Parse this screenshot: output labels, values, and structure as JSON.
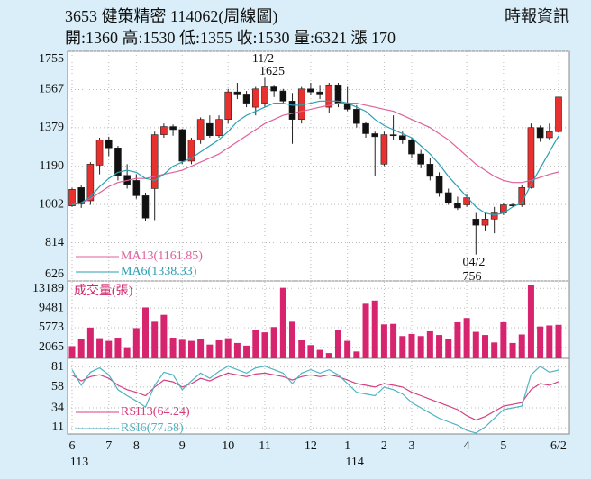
{
  "header": {
    "title": "3653  健策精密 114062(周線圖)",
    "source": "時報資訊",
    "summary": "開:1360 高:1530 低:1355 收:1530 量:6321 漲 170"
  },
  "chart_data": [
    {
      "type": "candlestick",
      "categories": [
        "6",
        null,
        null,
        null,
        "7",
        null,
        null,
        "8",
        null,
        null,
        null,
        null,
        "9",
        null,
        null,
        null,
        null,
        "10",
        null,
        null,
        null,
        "11",
        null,
        null,
        null,
        null,
        "12",
        null,
        null,
        null,
        "1",
        null,
        null,
        null,
        "2",
        null,
        null,
        "3",
        null,
        null,
        null,
        null,
        null,
        "4",
        null,
        null,
        null,
        "5",
        null,
        null,
        null,
        null,
        null,
        "6/2"
      ],
      "year_labels": [
        "113",
        null,
        null,
        null,
        null,
        null,
        null,
        null,
        null,
        null,
        null,
        null,
        null,
        null,
        null,
        null,
        null,
        null,
        null,
        null,
        null,
        null,
        null,
        null,
        null,
        null,
        null,
        null,
        null,
        null,
        "114",
        null,
        null,
        null,
        null,
        null,
        null,
        null,
        null,
        null,
        null,
        null,
        null,
        null,
        null,
        null,
        null,
        null,
        null,
        null,
        null,
        null,
        null,
        null
      ],
      "open": [
        995,
        1085,
        1020,
        1195,
        1320,
        1280,
        1145,
        1120,
        1045,
        1080,
        1345,
        1385,
        1370,
        1215,
        1320,
        1400,
        1340,
        1420,
        1555,
        1545,
        1480,
        1500,
        1580,
        1560,
        1510,
        1420,
        1570,
        1555,
        1480,
        1590,
        1500,
        1470,
        1400,
        1350,
        1200,
        1345,
        1340,
        1320,
        1250,
        1200,
        1140,
        1060,
        1010,
        1000,
        930,
        900,
        930,
        960,
        1000,
        1000,
        1085,
        1380,
        1330,
        1360
      ],
      "high": [
        1085,
        1095,
        1210,
        1330,
        1335,
        1290,
        1200,
        1150,
        1060,
        1360,
        1400,
        1395,
        1375,
        1330,
        1430,
        1440,
        1440,
        1570,
        1600,
        1560,
        1580,
        1625,
        1590,
        1570,
        1550,
        1580,
        1600,
        1590,
        1600,
        1600,
        1580,
        1490,
        1410,
        1360,
        1360,
        1440,
        1360,
        1330,
        1270,
        1230,
        1160,
        1080,
        1040,
        1050,
        960,
        960,
        990,
        1010,
        1010,
        1100,
        1400,
        1390,
        1400,
        1530
      ],
      "low": [
        990,
        985,
        1000,
        1150,
        1240,
        1120,
        1080,
        1030,
        920,
        925,
        1330,
        1340,
        1200,
        1200,
        1300,
        1330,
        1330,
        1400,
        1520,
        1480,
        1440,
        1480,
        1530,
        1500,
        1300,
        1400,
        1540,
        1520,
        1450,
        1480,
        1460,
        1380,
        1330,
        1140,
        1190,
        1320,
        1300,
        1230,
        1180,
        1120,
        1040,
        1000,
        975,
        990,
        756,
        870,
        860,
        950,
        990,
        990,
        1080,
        1310,
        1320,
        1355
      ],
      "close": [
        1076,
        1005,
        1200,
        1318,
        1280,
        1145,
        1100,
        1045,
        935,
        1345,
        1385,
        1370,
        1215,
        1320,
        1420,
        1340,
        1420,
        1555,
        1545,
        1500,
        1570,
        1580,
        1560,
        1510,
        1420,
        1570,
        1555,
        1545,
        1590,
        1500,
        1470,
        1400,
        1350,
        1335,
        1345,
        1340,
        1320,
        1250,
        1200,
        1140,
        1060,
        1010,
        985,
        1035,
        900,
        930,
        960,
        1000,
        995,
        1085,
        1380,
        1330,
        1360,
        1530
      ],
      "up_color": "#e8312f",
      "down_color": "#111111",
      "series": [
        {
          "name": "MA13(1161.85)",
          "color": "#e0609a",
          "values": [
            1000,
            1010,
            1030,
            1060,
            1090,
            1110,
            1120,
            1130,
            1130,
            1140,
            1150,
            1160,
            1170,
            1190,
            1210,
            1230,
            1250,
            1280,
            1310,
            1340,
            1370,
            1400,
            1420,
            1440,
            1450,
            1460,
            1470,
            1480,
            1490,
            1500,
            1500,
            1500,
            1490,
            1480,
            1470,
            1460,
            1440,
            1420,
            1400,
            1380,
            1350,
            1320,
            1280,
            1240,
            1200,
            1170,
            1140,
            1120,
            1110,
            1110,
            1120,
            1135,
            1150,
            1161.85
          ]
        },
        {
          "name": "MA6(1338.33)",
          "color": "#2a9fb3",
          "values": [
            1000,
            1010,
            1040,
            1090,
            1130,
            1160,
            1170,
            1160,
            1130,
            1120,
            1150,
            1190,
            1210,
            1230,
            1260,
            1290,
            1320,
            1360,
            1410,
            1440,
            1460,
            1480,
            1500,
            1500,
            1490,
            1490,
            1500,
            1510,
            1510,
            1510,
            1500,
            1480,
            1460,
            1420,
            1390,
            1370,
            1350,
            1330,
            1290,
            1250,
            1200,
            1140,
            1090,
            1040,
            990,
            960,
            950,
            960,
            990,
            1010,
            1100,
            1180,
            1260,
            1338.33
          ]
        }
      ],
      "annotations": [
        {
          "text": "11/2"
        },
        {
          "text": "1625"
        },
        {
          "text": "04/2"
        },
        {
          "text": "756"
        }
      ],
      "ylim": [
        626,
        1755
      ],
      "yticks": [
        626,
        814,
        1002,
        1190,
        1379,
        1567,
        1755
      ],
      "grid": true
    },
    {
      "type": "bar",
      "title": "成交量(張)",
      "color": "#d6246e",
      "values": [
        2300,
        3600,
        5800,
        3800,
        3300,
        3900,
        2100,
        5700,
        9600,
        6900,
        8200,
        3900,
        3500,
        3300,
        3700,
        2600,
        3400,
        3800,
        2900,
        2400,
        5300,
        4900,
        5900,
        13300,
        6900,
        3400,
        2500,
        1600,
        1000,
        5300,
        3300,
        1300,
        10300,
        10900,
        6400,
        6500,
        4200,
        4600,
        4200,
        5100,
        4400,
        3600,
        6800,
        7600,
        5000,
        4400,
        3000,
        6800,
        2900,
        4500,
        13800,
        6000,
        6200,
        6321
      ],
      "ylim": [
        0,
        14600
      ],
      "yticks": [
        2065,
        5773,
        9481,
        13189
      ],
      "grid": true
    },
    {
      "type": "line",
      "series": [
        {
          "name": "RSI13(64.24)",
          "color": "#d4407e",
          "values": [
            72,
            65,
            70,
            72,
            68,
            60,
            55,
            52,
            48,
            58,
            66,
            64,
            58,
            62,
            68,
            65,
            70,
            74,
            72,
            70,
            73,
            74,
            72,
            70,
            66,
            70,
            72,
            70,
            72,
            70,
            66,
            62,
            60,
            58,
            62,
            60,
            58,
            52,
            48,
            44,
            40,
            36,
            32,
            25,
            20,
            24,
            30,
            36,
            38,
            40,
            55,
            62,
            60,
            64.24
          ]
        },
        {
          "name": "RSI6(77.58)",
          "color": "#4fb3c4",
          "values": [
            78,
            60,
            75,
            80,
            72,
            55,
            48,
            42,
            35,
            60,
            75,
            72,
            55,
            65,
            74,
            68,
            76,
            82,
            78,
            74,
            80,
            82,
            78,
            74,
            62,
            74,
            78,
            74,
            78,
            72,
            62,
            52,
            50,
            48,
            58,
            55,
            50,
            40,
            34,
            28,
            22,
            18,
            14,
            8,
            5,
            12,
            22,
            32,
            34,
            36,
            72,
            82,
            75,
            77.58
          ]
        }
      ],
      "ylim": [
        4,
        91
      ],
      "yticks": [
        11,
        34,
        58,
        81
      ],
      "grid": true
    }
  ]
}
